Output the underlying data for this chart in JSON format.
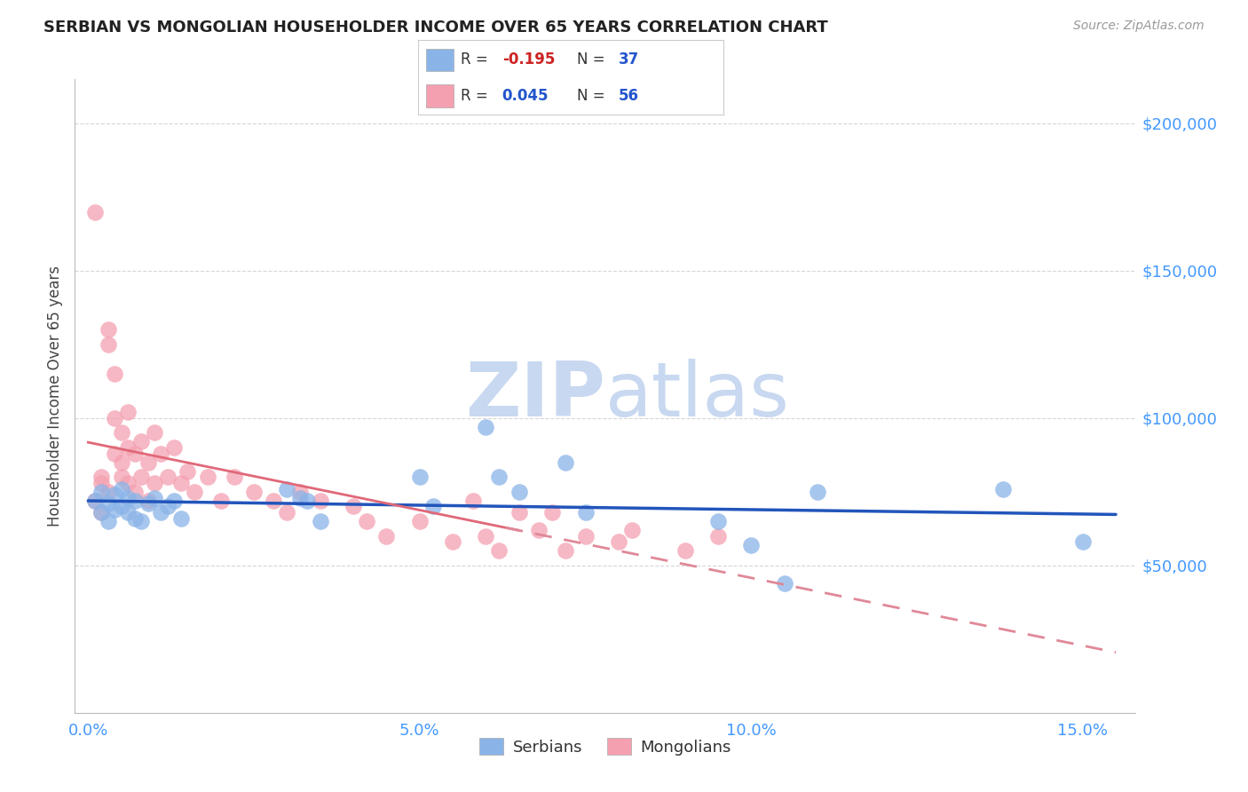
{
  "title": "SERBIAN VS MONGOLIAN HOUSEHOLDER INCOME OVER 65 YEARS CORRELATION CHART",
  "source": "Source: ZipAtlas.com",
  "ylabel": "Householder Income Over 65 years",
  "xlabel_ticks": [
    "0.0%",
    "5.0%",
    "10.0%",
    "15.0%"
  ],
  "xlabel_tick_vals": [
    0.0,
    0.05,
    0.1,
    0.15
  ],
  "ylabel_ticks": [
    0,
    50000,
    100000,
    150000,
    200000
  ],
  "ylabel_tick_labels": [
    "",
    "$50,000",
    "$100,000",
    "$150,000",
    "$200,000"
  ],
  "xlim": [
    -0.002,
    0.158
  ],
  "ylim": [
    10000,
    215000
  ],
  "serbian_color": "#8ab4e8",
  "mongolian_color": "#f4a0b0",
  "trendline_serbian_color": "#2255bb",
  "trendline_mongolian_solid_color": "#e06878",
  "trendline_mongolian_dashed_color": "#e08898",
  "watermark_zip_color": "#c8d8f0",
  "watermark_atlas_color": "#c8d8f0",
  "axis_color": "#4499ff",
  "grid_color": "#cccccc",
  "background_color": "#ffffff",
  "legend_box_color": "#ffffff",
  "legend_border_color": "#cccccc",
  "serbian_x": [
    0.001,
    0.002,
    0.002,
    0.003,
    0.003,
    0.004,
    0.004,
    0.005,
    0.005,
    0.006,
    0.006,
    0.007,
    0.007,
    0.008,
    0.009,
    0.01,
    0.011,
    0.012,
    0.013,
    0.014,
    0.03,
    0.032,
    0.033,
    0.035,
    0.05,
    0.052,
    0.06,
    0.062,
    0.065,
    0.072,
    0.075,
    0.095,
    0.1,
    0.105,
    0.11,
    0.138,
    0.15
  ],
  "serbian_y": [
    72000,
    68000,
    75000,
    71000,
    65000,
    74000,
    69000,
    76000,
    70000,
    73000,
    68000,
    72000,
    66000,
    65000,
    71000,
    73000,
    68000,
    70000,
    72000,
    66000,
    76000,
    73000,
    72000,
    65000,
    80000,
    70000,
    97000,
    80000,
    75000,
    85000,
    68000,
    65000,
    57000,
    44000,
    75000,
    76000,
    58000
  ],
  "mongolian_x": [
    0.001,
    0.001,
    0.002,
    0.002,
    0.002,
    0.003,
    0.003,
    0.003,
    0.004,
    0.004,
    0.004,
    0.005,
    0.005,
    0.005,
    0.006,
    0.006,
    0.006,
    0.007,
    0.007,
    0.008,
    0.008,
    0.009,
    0.009,
    0.01,
    0.01,
    0.011,
    0.012,
    0.013,
    0.014,
    0.015,
    0.016,
    0.018,
    0.02,
    0.022,
    0.025,
    0.028,
    0.03,
    0.032,
    0.035,
    0.04,
    0.042,
    0.045,
    0.05,
    0.055,
    0.058,
    0.06,
    0.062,
    0.065,
    0.068,
    0.07,
    0.072,
    0.075,
    0.08,
    0.082,
    0.09,
    0.095
  ],
  "mongolian_y": [
    170000,
    72000,
    68000,
    78000,
    80000,
    130000,
    125000,
    75000,
    115000,
    100000,
    88000,
    95000,
    85000,
    80000,
    102000,
    90000,
    78000,
    88000,
    75000,
    92000,
    80000,
    85000,
    72000,
    95000,
    78000,
    88000,
    80000,
    90000,
    78000,
    82000,
    75000,
    80000,
    72000,
    80000,
    75000,
    72000,
    68000,
    75000,
    72000,
    70000,
    65000,
    60000,
    65000,
    58000,
    72000,
    60000,
    55000,
    68000,
    62000,
    68000,
    55000,
    60000,
    58000,
    62000,
    55000,
    60000
  ],
  "trendline_x_start": 0.0,
  "trendline_x_end": 0.155,
  "trendline_mongolian_solid_end": 0.065,
  "trendline_mongolian_dashed_start": 0.063
}
